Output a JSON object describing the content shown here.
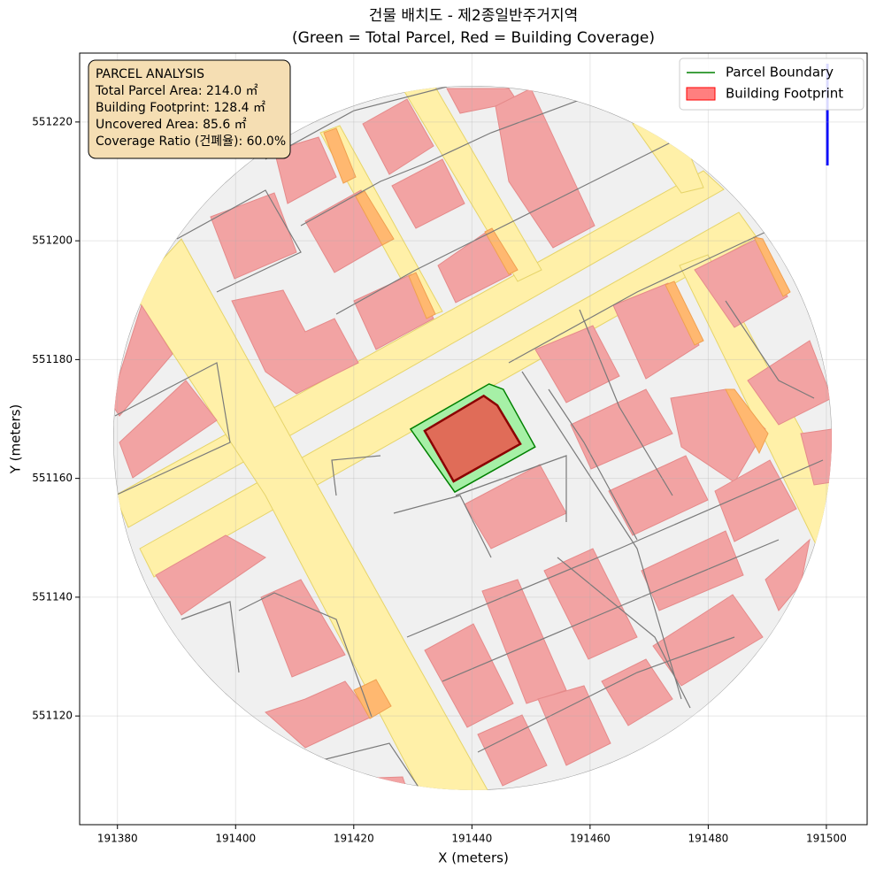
{
  "chart_data": {
    "type": "polygon",
    "title": "건물 배치도 - 제2종일반주거지역",
    "subtitle": "(Green = Total Parcel, Red = Building Coverage)",
    "x_label": "X (meters)",
    "y_label": "Y (meters)",
    "xlim": [
      191373.6,
      191506.9
    ],
    "ylim": [
      551101.7,
      551231.6
    ],
    "xticks": [
      191380,
      191400,
      191420,
      191440,
      191460,
      191480,
      191500
    ],
    "yticks": [
      551120,
      551140,
      551160,
      551180,
      551200,
      551220
    ],
    "grid": true,
    "legend": "upper right",
    "series": [
      {
        "name": "Parcel Boundary",
        "color": "green",
        "fill": "#a6f0a6",
        "x": [
          191429.6,
          191442.9,
          191445.3,
          191450.7,
          191437.1
        ],
        "y": [
          551168.3,
          551175.9,
          551175.0,
          551165.3,
          551157.7
        ]
      },
      {
        "name": "Building Footprint",
        "color": "#8b0000",
        "fill": "#e06c58",
        "x": [
          191432.0,
          191442.0,
          191444.3,
          191448.2,
          191436.9
        ],
        "y": [
          551168.0,
          551173.9,
          551172.3,
          551165.8,
          551159.5
        ]
      }
    ],
    "annotation": [
      "PARCEL ANALYSIS",
      "Total Parcel Area: 214.0 ㎡",
      "Building Footprint: 128.4 ㎡",
      "Uncovered Area: 85.6 ㎡",
      "Coverage Ratio (건폐율): 60.0%"
    ]
  }
}
